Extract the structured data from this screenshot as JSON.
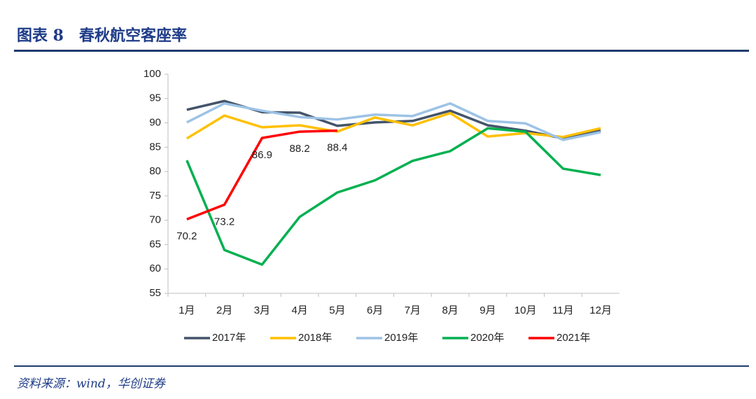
{
  "header": {
    "title": "图表 8　春秋航空客座率"
  },
  "chart_data": {
    "type": "line",
    "categories": [
      "1月",
      "2月",
      "3月",
      "4月",
      "5月",
      "6月",
      "7月",
      "8月",
      "9月",
      "10月",
      "11月",
      "12月"
    ],
    "series": [
      {
        "name": "2017年",
        "color": "#44546a",
        "values": [
          92.7,
          94.5,
          92.2,
          92.1,
          89.4,
          90.1,
          90.4,
          92.5,
          89.5,
          88.4,
          86.8,
          88.4
        ]
      },
      {
        "name": "2018年",
        "color": "#ffc000",
        "values": [
          86.8,
          91.5,
          89.1,
          89.5,
          88.2,
          91.1,
          89.5,
          92.0,
          87.2,
          87.9,
          87.1,
          88.9
        ]
      },
      {
        "name": "2019年",
        "color": "#9dc3e6",
        "values": [
          90.1,
          94.0,
          92.5,
          91.2,
          90.7,
          91.7,
          91.4,
          94.0,
          90.4,
          89.9,
          86.5,
          88.1
        ]
      },
      {
        "name": "2020年",
        "color": "#00b050",
        "values": [
          82.3,
          63.9,
          60.9,
          70.7,
          75.7,
          78.2,
          82.2,
          84.2,
          88.9,
          88.2,
          80.6,
          79.3
        ]
      },
      {
        "name": "2021年",
        "color": "#ff0000",
        "values": [
          70.2,
          73.2,
          86.9,
          88.2,
          88.4,
          null,
          null,
          null,
          null,
          null,
          null,
          null
        ],
        "data_labels": true
      }
    ],
    "ylim": [
      55,
      100
    ],
    "yticks": [
      55,
      60,
      65,
      70,
      75,
      80,
      85,
      90,
      95,
      100
    ],
    "grid": false,
    "legend": "bottom"
  },
  "footer": {
    "source": "资料来源：wind，华创证券"
  }
}
